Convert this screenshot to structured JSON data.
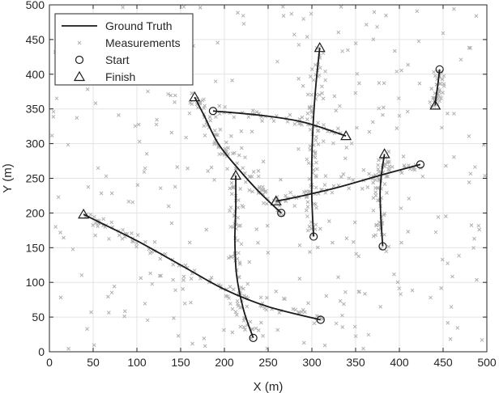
{
  "chart_data": {
    "type": "line",
    "xlabel": "X (m)",
    "ylabel": "Y (m)",
    "xlim": [
      0,
      500
    ],
    "ylim": [
      0,
      500
    ],
    "xticks": [
      "0",
      "50",
      "100",
      "150",
      "200",
      "250",
      "300",
      "350",
      "400",
      "450",
      "500"
    ],
    "yticks": [
      "0",
      "50",
      "100",
      "150",
      "200",
      "250",
      "300",
      "350",
      "400",
      "450",
      "500"
    ],
    "grid": true,
    "legend_position": "top-left",
    "legend": [
      {
        "label": "Ground Truth",
        "kind": "line"
      },
      {
        "label": "Measurements",
        "kind": "cross"
      },
      {
        "label": "Start",
        "kind": "circle"
      },
      {
        "label": "Finish",
        "kind": "triangle"
      }
    ],
    "colors": {
      "ground_truth": "#1a1a1a",
      "measurements": "#b0b0b0",
      "grid": "#e3e3e3",
      "axes": "#262626"
    },
    "tracks": [
      {
        "start": [
          233,
          20
        ],
        "finish": [
          213,
          254
        ],
        "points": [
          [
            233,
            20
          ],
          [
            222,
            60
          ],
          [
            214,
            110
          ],
          [
            212,
            160
          ],
          [
            213,
            210
          ],
          [
            213,
            254
          ]
        ]
      },
      {
        "start": [
          310,
          46
        ],
        "finish": [
          39,
          198
        ],
        "points": [
          [
            310,
            46
          ],
          [
            250,
            65
          ],
          [
            200,
            90
          ],
          [
            150,
            125
          ],
          [
            100,
            160
          ],
          [
            60,
            185
          ],
          [
            39,
            198
          ]
        ]
      },
      {
        "start": [
          265,
          200
        ],
        "finish": [
          166,
          367
        ],
        "points": [
          [
            265,
            200
          ],
          [
            240,
            230
          ],
          [
            215,
            265
          ],
          [
            193,
            300
          ],
          [
            177,
            340
          ],
          [
            166,
            367
          ]
        ]
      },
      {
        "start": [
          187,
          347
        ],
        "finish": [
          339,
          311
        ],
        "points": [
          [
            187,
            347
          ],
          [
            240,
            341
          ],
          [
            290,
            331
          ],
          [
            339,
            311
          ]
        ]
      },
      {
        "start": [
          302,
          166
        ],
        "finish": [
          309,
          438
        ],
        "points": [
          [
            302,
            166
          ],
          [
            300,
            220
          ],
          [
            300,
            280
          ],
          [
            302,
            340
          ],
          [
            305,
            390
          ],
          [
            309,
            438
          ]
        ]
      },
      {
        "start": [
          424,
          270
        ],
        "finish": [
          259,
          217
        ],
        "points": [
          [
            424,
            270
          ],
          [
            380,
            255
          ],
          [
            330,
            237
          ],
          [
            290,
            225
          ],
          [
            259,
            217
          ]
        ]
      },
      {
        "start": [
          381,
          152
        ],
        "finish": [
          383,
          285
        ],
        "points": [
          [
            381,
            152
          ],
          [
            379,
            190
          ],
          [
            378,
            230
          ],
          [
            380,
            260
          ],
          [
            383,
            285
          ]
        ]
      },
      {
        "start": [
          446,
          407
        ],
        "finish": [
          441,
          355
        ],
        "points": [
          [
            446,
            407
          ],
          [
            444,
            385
          ],
          [
            442,
            368
          ],
          [
            441,
            355
          ]
        ]
      }
    ]
  }
}
